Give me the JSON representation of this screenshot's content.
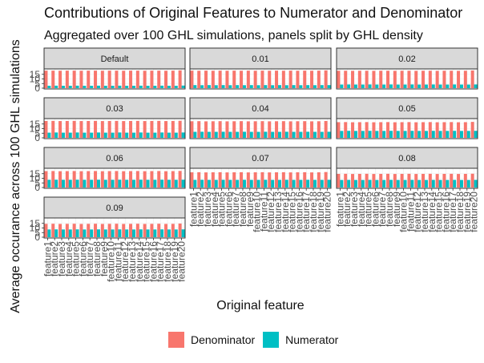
{
  "title": "Contributions of Original Features to Numerator and Denominator",
  "subtitle": "Aggregated over 100 GHL simulations, panels split by GHL density",
  "chart_data": {
    "type": "bar",
    "title": "Contributions of Original Features to Numerator and Denominator",
    "subtitle": "Aggregated over 100 GHL simulations, panels split by GHL density",
    "xlabel": "Original feature",
    "ylabel": "Average occurance across 100 GHL simulations",
    "ylim": [
      0,
      20
    ],
    "yticks": [
      0,
      5,
      10,
      15
    ],
    "categories": [
      "feature1",
      "feature2",
      "feature3",
      "feature4",
      "feature5",
      "feature6",
      "feature7",
      "feature8",
      "feature9",
      "feature10",
      "feature11",
      "feature12",
      "feature13",
      "feature14",
      "feature15",
      "feature16",
      "feature17",
      "feature18",
      "feature19",
      "feature20"
    ],
    "legend": {
      "position": "bottom",
      "items": [
        "Denominator",
        "Numerator"
      ]
    },
    "grid": true,
    "colors": {
      "Denominator": "#F8766D",
      "Numerator": "#00BFC4"
    },
    "panels": [
      {
        "label": "Default",
        "series": [
          {
            "name": "Denominator",
            "values": [
              19.0,
              19.0,
              18.9,
              19.0,
              19.0,
              18.9,
              19.0,
              19.0,
              18.9,
              19.0,
              19.0,
              18.9,
              19.0,
              19.0,
              18.9,
              19.0,
              19.0,
              18.9,
              19.0,
              19.3
            ]
          },
          {
            "name": "Numerator",
            "values": [
              2.6,
              2.7,
              2.6,
              2.6,
              2.7,
              2.6,
              2.6,
              2.7,
              2.6,
              2.6,
              2.7,
              2.6,
              2.6,
              2.7,
              2.6,
              2.6,
              2.7,
              2.6,
              2.6,
              2.8
            ]
          }
        ]
      },
      {
        "label": "0.01",
        "series": [
          {
            "name": "Denominator",
            "values": [
              19.0,
              18.9,
              19.0,
              18.9,
              19.0,
              18.9,
              19.0,
              18.9,
              19.0,
              18.9,
              19.0,
              18.9,
              19.0,
              18.9,
              19.0,
              18.9,
              19.0,
              18.9,
              19.0,
              19.3
            ]
          },
          {
            "name": "Numerator",
            "values": [
              3.3,
              3.2,
              3.3,
              3.2,
              3.3,
              3.2,
              3.3,
              3.2,
              3.3,
              3.2,
              3.3,
              3.2,
              3.3,
              3.2,
              3.3,
              3.2,
              3.3,
              3.2,
              3.3,
              3.3
            ]
          }
        ]
      },
      {
        "label": "0.02",
        "series": [
          {
            "name": "Denominator",
            "values": [
              18.9,
              18.9,
              18.8,
              18.9,
              18.9,
              18.8,
              18.9,
              18.9,
              18.8,
              18.9,
              18.9,
              18.8,
              18.9,
              18.9,
              18.8,
              18.9,
              18.9,
              18.8,
              18.9,
              19.2
            ]
          },
          {
            "name": "Numerator",
            "values": [
              3.9,
              4.0,
              3.9,
              3.9,
              4.0,
              3.9,
              3.9,
              4.0,
              3.9,
              3.9,
              4.0,
              3.9,
              3.9,
              4.0,
              3.9,
              3.9,
              4.0,
              3.9,
              3.9,
              4.0
            ]
          }
        ]
      },
      {
        "label": "0.03",
        "series": [
          {
            "name": "Denominator",
            "values": [
              18.3,
              18.4,
              18.2,
              18.3,
              18.4,
              18.2,
              18.3,
              18.4,
              18.2,
              18.3,
              18.4,
              18.2,
              18.3,
              18.4,
              18.2,
              18.3,
              18.4,
              18.2,
              18.3,
              18.5
            ]
          },
          {
            "name": "Numerator",
            "values": [
              5.6,
              5.8,
              5.6,
              5.6,
              5.8,
              5.6,
              5.6,
              5.8,
              5.6,
              5.6,
              5.8,
              5.6,
              5.6,
              5.8,
              5.6,
              5.6,
              5.8,
              5.6,
              5.6,
              5.8
            ]
          }
        ]
      },
      {
        "label": "0.04",
        "series": [
          {
            "name": "Denominator",
            "values": [
              18.0,
              18.1,
              17.9,
              18.0,
              18.1,
              17.9,
              18.0,
              18.1,
              17.9,
              18.0,
              18.1,
              17.9,
              18.0,
              18.1,
              17.9,
              18.0,
              18.1,
              17.9,
              18.0,
              18.3
            ]
          },
          {
            "name": "Numerator",
            "values": [
              6.5,
              6.6,
              6.5,
              6.5,
              6.6,
              6.5,
              6.5,
              6.6,
              6.5,
              6.5,
              6.6,
              6.5,
              6.5,
              6.6,
              6.5,
              6.5,
              6.6,
              6.5,
              6.5,
              6.6
            ]
          }
        ]
      },
      {
        "label": "0.05",
        "series": [
          {
            "name": "Denominator",
            "values": [
              17.0,
              17.1,
              16.9,
              17.0,
              17.1,
              16.9,
              17.0,
              17.1,
              16.9,
              17.0,
              17.1,
              16.9,
              17.0,
              17.1,
              16.9,
              17.0,
              17.1,
              16.9,
              17.0,
              17.3
            ]
          },
          {
            "name": "Numerator",
            "values": [
              7.5,
              7.6,
              7.5,
              7.5,
              7.6,
              7.5,
              7.5,
              7.6,
              7.5,
              7.5,
              7.6,
              7.5,
              7.5,
              7.6,
              7.5,
              7.5,
              7.6,
              7.5,
              7.5,
              7.6
            ]
          }
        ]
      },
      {
        "label": "0.06",
        "series": [
          {
            "name": "Denominator",
            "values": [
              17.8,
              17.9,
              17.7,
              17.8,
              17.9,
              17.7,
              17.8,
              17.9,
              17.7,
              17.8,
              17.9,
              17.7,
              17.8,
              17.9,
              17.7,
              17.8,
              17.9,
              17.7,
              17.8,
              18.0
            ]
          },
          {
            "name": "Numerator",
            "values": [
              8.4,
              8.5,
              8.4,
              8.4,
              8.5,
              8.4,
              8.4,
              8.5,
              8.4,
              8.4,
              8.5,
              8.4,
              8.4,
              8.5,
              8.4,
              8.4,
              8.5,
              8.4,
              8.4,
              8.5
            ]
          }
        ]
      },
      {
        "label": "0.07",
        "series": [
          {
            "name": "Denominator",
            "values": [
              16.5,
              16.6,
              16.4,
              16.5,
              16.6,
              16.4,
              16.5,
              16.6,
              16.4,
              16.5,
              16.6,
              16.4,
              16.5,
              16.6,
              16.4,
              16.5,
              16.6,
              16.4,
              16.5,
              16.8
            ]
          },
          {
            "name": "Numerator",
            "values": [
              8.3,
              8.4,
              8.3,
              8.3,
              8.4,
              8.3,
              8.3,
              8.4,
              8.3,
              8.3,
              8.4,
              8.3,
              8.3,
              8.4,
              8.3,
              8.3,
              8.4,
              8.3,
              8.3,
              8.4
            ]
          }
        ]
      },
      {
        "label": "0.08",
        "series": [
          {
            "name": "Denominator",
            "values": [
              14.8,
              14.9,
              14.7,
              14.8,
              14.9,
              14.7,
              14.8,
              14.9,
              14.7,
              14.8,
              14.9,
              14.7,
              14.8,
              14.9,
              14.7,
              14.8,
              14.9,
              14.7,
              14.8,
              15.0
            ]
          },
          {
            "name": "Numerator",
            "values": [
              8.2,
              8.3,
              8.2,
              8.2,
              8.3,
              8.2,
              8.2,
              8.3,
              8.2,
              8.2,
              8.3,
              8.2,
              8.2,
              8.3,
              8.2,
              8.2,
              8.3,
              8.2,
              8.2,
              8.3
            ]
          }
        ]
      },
      {
        "label": "0.09",
        "series": [
          {
            "name": "Denominator",
            "values": [
              14.5,
              14.6,
              14.4,
              14.5,
              14.6,
              14.4,
              14.5,
              14.6,
              14.4,
              14.5,
              14.6,
              14.4,
              14.5,
              14.6,
              14.4,
              14.5,
              14.6,
              14.4,
              14.5,
              14.8
            ]
          },
          {
            "name": "Numerator",
            "values": [
              8.4,
              8.5,
              8.4,
              8.4,
              8.5,
              8.4,
              8.4,
              8.5,
              8.4,
              8.4,
              8.5,
              8.4,
              8.4,
              8.5,
              8.4,
              8.4,
              8.5,
              8.4,
              8.4,
              8.5
            ]
          }
        ]
      }
    ]
  }
}
